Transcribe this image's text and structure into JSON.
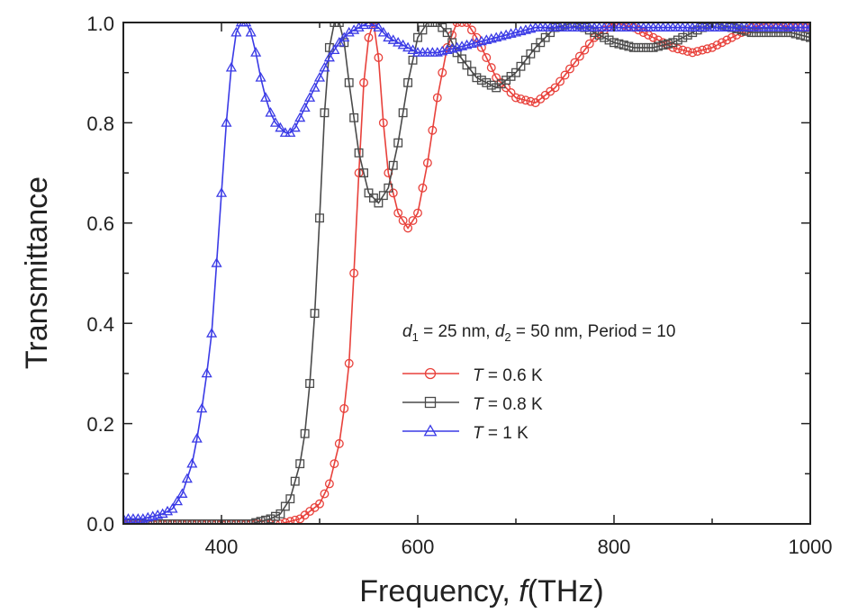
{
  "chart_data": {
    "type": "line",
    "title": "",
    "xlabel": "Frequency, ",
    "xlabel_var": "f",
    "xlabel_unit": "(THz)",
    "ylabel": "Transmittance",
    "xlim": [
      300,
      1000
    ],
    "ylim": [
      0.0,
      1.0
    ],
    "x_ticks": [
      "400",
      "600",
      "800",
      "1000"
    ],
    "y_ticks": [
      "0.0",
      "0.2",
      "0.4",
      "0.6",
      "0.8",
      "1.0"
    ],
    "grid": false,
    "legend_position": "right-middle",
    "annotation": {
      "d1_var": "d",
      "d1_sub": "1",
      "d1_text": " = 25 nm, ",
      "d2_var": "d",
      "d2_sub": "2",
      "d2_text": " = 50 nm, Period = 10"
    },
    "series": [
      {
        "name": "T = 0.6 K",
        "var": "T",
        "rest": " = 0.6 K",
        "color": "#e8413b",
        "marker": "circle",
        "x": [
          300,
          460,
          480,
          500,
          510,
          520,
          525,
          530,
          535,
          540,
          545,
          550,
          555,
          560,
          565,
          570,
          580,
          590,
          600,
          610,
          620,
          630,
          640,
          650,
          660,
          680,
          700,
          720,
          740,
          760,
          780,
          800,
          820,
          840,
          860,
          880,
          900,
          920,
          940,
          960,
          980,
          1000
        ],
        "y": [
          0.0,
          0.0,
          0.01,
          0.04,
          0.08,
          0.16,
          0.23,
          0.32,
          0.5,
          0.7,
          0.88,
          0.97,
          1.0,
          0.93,
          0.8,
          0.7,
          0.62,
          0.59,
          0.62,
          0.72,
          0.85,
          0.95,
          1.0,
          1.0,
          0.97,
          0.89,
          0.85,
          0.84,
          0.87,
          0.92,
          0.97,
          1.0,
          0.99,
          0.97,
          0.95,
          0.94,
          0.95,
          0.97,
          0.99,
          1.0,
          0.99,
          0.99
        ]
      },
      {
        "name": "T = 0.8 K",
        "var": "T",
        "rest": " = 0.8 K",
        "color": "#4a4a4a",
        "marker": "square",
        "x": [
          300,
          430,
          450,
          460,
          470,
          480,
          485,
          490,
          495,
          500,
          505,
          510,
          515,
          520,
          525,
          530,
          540,
          550,
          560,
          570,
          580,
          590,
          600,
          610,
          620,
          630,
          640,
          660,
          680,
          700,
          720,
          740,
          760,
          780,
          800,
          820,
          840,
          860,
          880,
          900,
          920,
          940,
          960,
          980,
          1000
        ],
        "y": [
          0.0,
          0.0,
          0.01,
          0.02,
          0.05,
          0.12,
          0.18,
          0.28,
          0.42,
          0.61,
          0.82,
          0.95,
          1.0,
          1.0,
          0.96,
          0.88,
          0.74,
          0.66,
          0.64,
          0.67,
          0.76,
          0.88,
          0.97,
          1.0,
          1.0,
          0.98,
          0.94,
          0.89,
          0.87,
          0.9,
          0.95,
          0.99,
          1.0,
          0.98,
          0.96,
          0.95,
          0.95,
          0.96,
          0.98,
          1.0,
          0.99,
          0.98,
          0.98,
          0.98,
          0.97
        ]
      },
      {
        "name": "T = 1 K",
        "var": "T",
        "rest": " = 1 K",
        "color": "#3a3ae6",
        "marker": "triangle",
        "x": [
          300,
          320,
          340,
          350,
          360,
          370,
          375,
          380,
          385,
          390,
          395,
          400,
          405,
          410,
          415,
          420,
          425,
          430,
          435,
          440,
          445,
          450,
          455,
          460,
          465,
          470,
          475,
          480,
          490,
          500,
          510,
          520,
          530,
          540,
          550,
          560,
          570,
          580,
          590,
          600,
          620,
          640,
          660,
          680,
          700,
          720,
          740,
          760,
          780,
          800,
          820,
          840,
          860,
          880,
          900,
          920,
          940,
          960,
          980,
          1000
        ],
        "y": [
          0.01,
          0.01,
          0.02,
          0.03,
          0.06,
          0.12,
          0.17,
          0.23,
          0.3,
          0.38,
          0.52,
          0.66,
          0.8,
          0.91,
          0.98,
          1.0,
          1.0,
          0.98,
          0.94,
          0.89,
          0.85,
          0.82,
          0.8,
          0.79,
          0.78,
          0.78,
          0.79,
          0.81,
          0.85,
          0.89,
          0.93,
          0.96,
          0.98,
          0.99,
          1.0,
          0.99,
          0.97,
          0.96,
          0.95,
          0.94,
          0.94,
          0.95,
          0.96,
          0.97,
          0.98,
          0.99,
          0.99,
          0.99,
          0.99,
          0.99,
          0.99,
          0.99,
          0.99,
          0.99,
          0.99,
          0.99,
          0.99,
          0.99,
          0.99,
          0.99
        ]
      }
    ]
  }
}
